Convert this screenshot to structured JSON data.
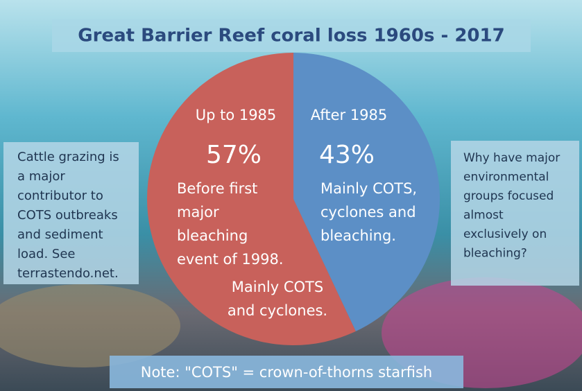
{
  "chart_data": {
    "type": "pie",
    "title": "Great Barrier Reef coral loss 1960s - 2017",
    "categories": [
      "Up to 1985",
      "After 1985"
    ],
    "values": [
      57,
      43
    ],
    "value_labels": [
      "57%",
      "43%"
    ],
    "colors": [
      "#c8615b",
      "#5c8fc6"
    ],
    "slice_notes": [
      [
        [
          "Before first",
          "major",
          "bleaching",
          "event of 1998."
        ],
        [
          "Mainly COTS",
          "and cyclones."
        ]
      ],
      [
        [
          "Mainly COTS,",
          "cyclones and",
          "bleaching."
        ]
      ]
    ],
    "side_notes": [
      [
        "Cattle grazing is",
        "a major",
        "contributor to",
        "COTS outbreaks",
        "and sediment",
        "load. See",
        "terrastendo.net."
      ],
      [
        "Why have major",
        "environmental",
        "groups focused",
        "almost",
        "exclusively on",
        "bleaching?"
      ]
    ],
    "footnote": "Note: \"COTS\" = crown-of-thorns starfish"
  }
}
